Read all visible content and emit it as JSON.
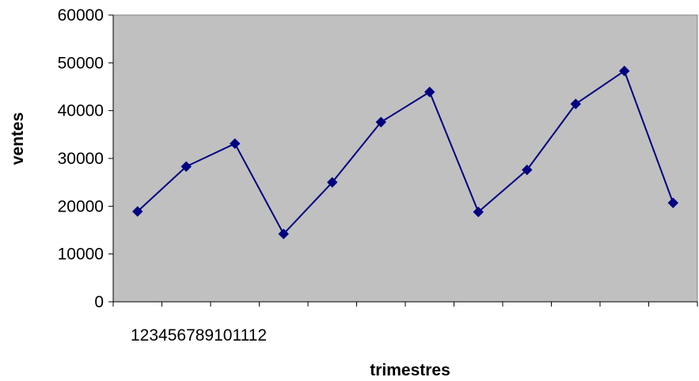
{
  "chart_data": {
    "type": "line",
    "categories": [
      "1",
      "2",
      "3",
      "4",
      "5",
      "6",
      "7",
      "8",
      "9",
      "10",
      "11",
      "12"
    ],
    "category_label_text": "123456789101112",
    "series": [
      {
        "values": [
          18900,
          28300,
          33100,
          14200,
          25000,
          37600,
          43900,
          18800,
          27600,
          41400,
          48300,
          20700
        ]
      }
    ],
    "xlabel": "trimestres",
    "ylabel": "ventes",
    "ylim": [
      0,
      60000
    ],
    "yticks": [
      0,
      10000,
      20000,
      30000,
      40000,
      50000,
      60000
    ],
    "grid": false,
    "colors": {
      "plot_background": "#c0c0c0",
      "line": "#000080",
      "marker": "#000080"
    },
    "marker": "diamond"
  }
}
